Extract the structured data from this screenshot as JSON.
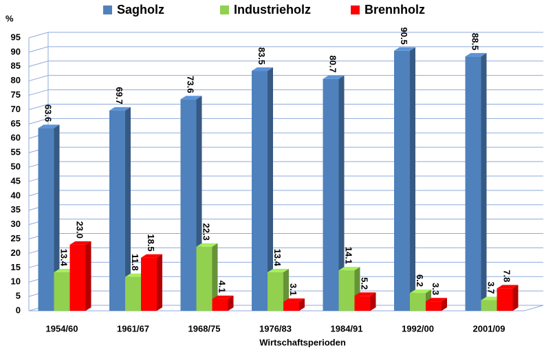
{
  "chart_data": {
    "type": "bar3d",
    "y_label": "%",
    "x_label": "Wirtschaftsperioden",
    "categories": [
      "1954/60",
      "1961/67",
      "1968/75",
      "1976/83",
      "1984/91",
      "1992/00",
      "2001/09"
    ],
    "series": [
      {
        "name": "Sagholz",
        "color": "#4f81bd",
        "values": [
          63.6,
          69.7,
          73.6,
          83.5,
          80.7,
          90.5,
          88.5
        ],
        "value_labels": [
          "63.6",
          "69.7",
          "73.6",
          "83.5",
          "80.7",
          "90.5",
          "88.5"
        ]
      },
      {
        "name": "Industrieholz",
        "color": "#92d050",
        "values": [
          13.4,
          11.8,
          22.3,
          13.4,
          14.1,
          6.2,
          3.7
        ],
        "value_labels": [
          "13.4",
          "11.8",
          "22.3",
          "13.4",
          "14.1",
          "6.2",
          "3.7"
        ]
      },
      {
        "name": "Brennholz",
        "color": "#ff0000",
        "values": [
          23.0,
          18.5,
          4.1,
          3.1,
          5.2,
          3.3,
          7.8
        ],
        "value_labels": [
          "23.0",
          "18.5",
          "4.1",
          "3.1",
          "5.2",
          "3.3",
          "7.8"
        ]
      }
    ],
    "ylim": [
      0,
      95
    ],
    "yticks": [
      0,
      5,
      10,
      15,
      20,
      25,
      30,
      35,
      40,
      45,
      50,
      55,
      60,
      65,
      70,
      75,
      80,
      85,
      90,
      95
    ],
    "grid": true,
    "legend": "top"
  }
}
